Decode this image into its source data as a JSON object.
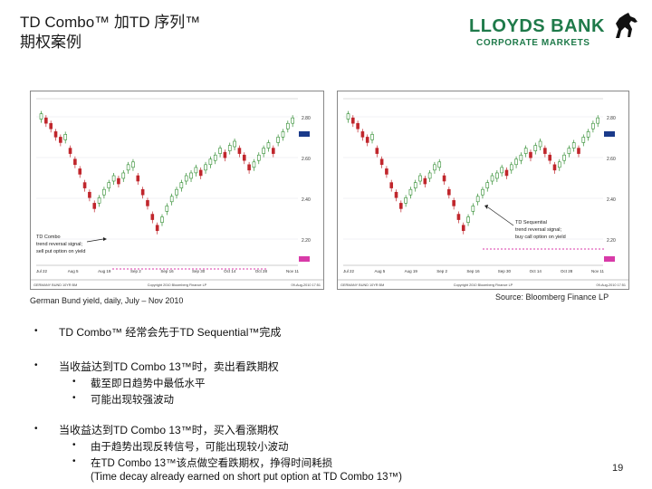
{
  "title": {
    "line1": "TD Combo™ 加TD 序列™",
    "line2": "期权案例"
  },
  "logo": {
    "bank": "LLOYDS BANK",
    "sub": "CORPORATE MARKETS"
  },
  "captions": {
    "left": "German Bund yield, daily, July – Nov 2010",
    "right": "Source: Bloomberg Finance LP"
  },
  "charts": {
    "left": {
      "annotation": [
        "TD Combo",
        "trend reversal signal;",
        "sell put option on yield"
      ],
      "x_labels": [
        "Jul 22",
        "Aug 5",
        "Aug 19",
        "Sep 2",
        "Sep 16",
        "Sep 30",
        "Oct 14",
        "Oct 28",
        "Nov 11"
      ],
      "y_labels": [
        "2.80",
        "2.60",
        "2.40",
        "2.20"
      ],
      "footer_left": "GERMANY BUND 10YR BM",
      "footer_mid": "Copyright 2010 Bloomberg Finance LP",
      "footer_right": "09-Aug-2010 17:51"
    },
    "right": {
      "annotation": [
        "TD Sequential",
        "trend reversal signal;",
        "buy call option on yield"
      ],
      "x_labels": [
        "Jul 22",
        "Aug 5",
        "Aug 19",
        "Sep 2",
        "Sep 16",
        "Sep 30",
        "Oct 14",
        "Oct 28",
        "Nov 11"
      ],
      "y_labels": [
        "2.80",
        "2.60",
        "2.40",
        "2.20"
      ],
      "footer_left": "GERMANY BUND 10YR BM",
      "footer_mid": "Copyright 2010 Bloomberg Finance LP",
      "footer_right": "09-Aug-2010 17:51"
    }
  },
  "bullets": [
    {
      "text": "TD Combo™ 经常会先于TD Sequential™完成",
      "subs": []
    },
    {
      "text": "当收益达到TD Combo 13™时，卖出看跌期权",
      "subs": [
        "截至即日趋势中最低水平",
        "可能出现较强波动"
      ]
    },
    {
      "text": "当收益达到TD Combo 13™时，买入看涨期权",
      "subs": [
        "由于趋势出现反转信号，可能出现较小波动",
        "在TD Combo 13™该点做空看跌期权，挣得时间耗损",
        "(Time decay already earned on short put option at TD Combo 13™)"
      ]
    }
  ],
  "page_number": "19",
  "colors": {
    "brand_green": "#1f7a4a",
    "candle_up": "#2e8b2e",
    "candle_down": "#c0262c",
    "signal": "#d83aa8"
  }
}
